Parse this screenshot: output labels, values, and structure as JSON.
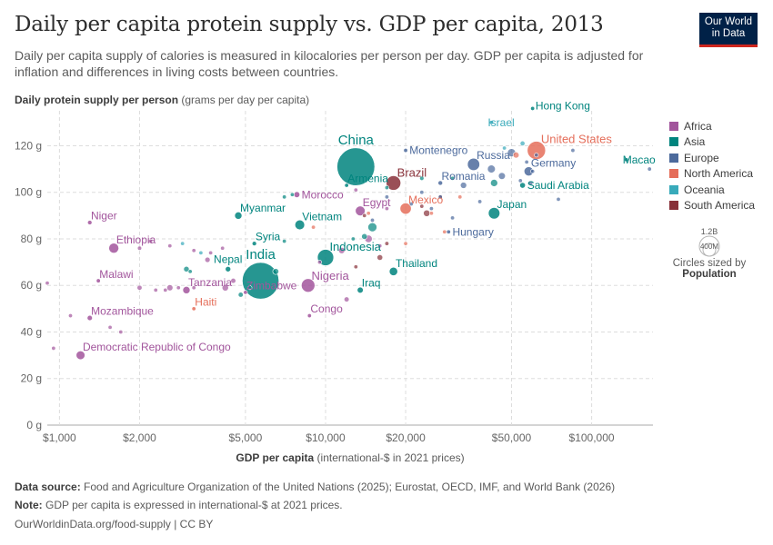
{
  "header": {
    "title": "Daily per capita protein supply vs. GDP per capita, 2013",
    "subtitle": "Daily per capita supply of calories is measured in kilocalories per person per day. GDP per capita is adjusted for inflation and differences in living costs between countries.",
    "logo_line1": "Our World",
    "logo_line2": "in Data"
  },
  "axes": {
    "y_label_bold": "Daily protein supply per person",
    "y_label_rest": "(grams per day per capita)",
    "x_label_bold": "GDP per capita",
    "x_label_rest": "(international-$ in 2021 prices)"
  },
  "legend": {
    "items": [
      {
        "label": "Africa",
        "color": "#a2559c"
      },
      {
        "label": "Asia",
        "color": "#00847e"
      },
      {
        "label": "Europe",
        "color": "#4c6a9c"
      },
      {
        "label": "North America",
        "color": "#e56e5a"
      },
      {
        "label": "Oceania",
        "color": "#38aaba"
      },
      {
        "label": "South America",
        "color": "#883039"
      }
    ],
    "size_big": "1.2B",
    "size_small": "400M",
    "size_note_1": "Circles sized by",
    "size_note_2": "Population"
  },
  "footer": {
    "source_label": "Data source:",
    "source_text": "Food and Agriculture Organization of the United Nations (2025); Eurostat, OECD, IMF, and World Bank (2026)",
    "note_label": "Note:",
    "note_text": "GDP per capita is expressed in international-$ at 2021 prices.",
    "url": "OurWorldinData.org/food-supply | CC BY"
  },
  "chart_data": {
    "type": "scatter",
    "x_scale": "log",
    "xlim": [
      900,
      170000
    ],
    "ylim": [
      0,
      135
    ],
    "x_ticks": [
      {
        "v": 1000,
        "label": "$1,000"
      },
      {
        "v": 2000,
        "label": "$2,000"
      },
      {
        "v": 5000,
        "label": "$5,000"
      },
      {
        "v": 10000,
        "label": "$10,000"
      },
      {
        "v": 20000,
        "label": "$20,000"
      },
      {
        "v": 50000,
        "label": "$50,000"
      },
      {
        "v": 100000,
        "label": "$100,000"
      }
    ],
    "y_ticks": [
      {
        "v": 0,
        "label": "0 g"
      },
      {
        "v": 20,
        "label": "20 g"
      },
      {
        "v": 40,
        "label": "40 g"
      },
      {
        "v": 60,
        "label": "60 g"
      },
      {
        "v": 80,
        "label": "80 g"
      },
      {
        "v": 100,
        "label": "100 g"
      },
      {
        "v": 120,
        "label": "120 g"
      }
    ],
    "grid": true,
    "labeled_points": [
      {
        "name": "Israel",
        "region": "Oceania",
        "x": 42000,
        "y": 130,
        "pop": 8,
        "lx": 0,
        "ly": 1
      },
      {
        "name": "Hong Kong",
        "region": "Asia",
        "x": 60000,
        "y": 136,
        "pop": 7,
        "lx": 1,
        "ly": 1
      },
      {
        "name": "United States",
        "region": "North America",
        "x": 62000,
        "y": 118,
        "pop": 320,
        "lx": 1,
        "ly": -1
      },
      {
        "name": "China",
        "region": "Asia",
        "x": 13000,
        "y": 111,
        "pop": 1370,
        "lx": 0,
        "ly": -1
      },
      {
        "name": "Montenegro",
        "region": "Europe",
        "x": 20000,
        "y": 118,
        "pop": 1,
        "lx": 1,
        "ly": 0
      },
      {
        "name": "Russia",
        "region": "Europe",
        "x": 36000,
        "y": 112,
        "pop": 144,
        "lx": 1,
        "ly": -1
      },
      {
        "name": "Macao",
        "region": "Asia",
        "x": 135000,
        "y": 114,
        "pop": 1,
        "lx": 0,
        "ly": 1
      },
      {
        "name": "Germany",
        "region": "Europe",
        "x": 58000,
        "y": 109,
        "pop": 81,
        "lx": 1,
        "ly": -1
      },
      {
        "name": "Romania",
        "region": "Europe",
        "x": 27000,
        "y": 104,
        "pop": 20,
        "lx": 1,
        "ly": -1
      },
      {
        "name": "Armenia",
        "region": "Asia",
        "x": 12000,
        "y": 103,
        "pop": 3,
        "lx": 1,
        "ly": -1
      },
      {
        "name": "Brazil",
        "region": "South America",
        "x": 18000,
        "y": 104,
        "pop": 204,
        "lx": 1,
        "ly": -1
      },
      {
        "name": "Saudi Arabia",
        "region": "Asia",
        "x": 55000,
        "y": 103,
        "pop": 31,
        "lx": 1,
        "ly": 0
      },
      {
        "name": "Morocco",
        "region": "Africa",
        "x": 7800,
        "y": 99,
        "pop": 34,
        "lx": 1,
        "ly": 0
      },
      {
        "name": "Egypt",
        "region": "Africa",
        "x": 13500,
        "y": 92,
        "pop": 91,
        "lx": 1,
        "ly": -1
      },
      {
        "name": "Mexico",
        "region": "North America",
        "x": 20000,
        "y": 93,
        "pop": 121,
        "lx": 1,
        "ly": -1
      },
      {
        "name": "Japan",
        "region": "Asia",
        "x": 43000,
        "y": 91,
        "pop": 127,
        "lx": 1,
        "ly": -1
      },
      {
        "name": "Myanmar",
        "region": "Asia",
        "x": 4700,
        "y": 90,
        "pop": 51,
        "lx": 1,
        "ly": -1
      },
      {
        "name": "Vietnam",
        "region": "Asia",
        "x": 8000,
        "y": 86,
        "pop": 91,
        "lx": 1,
        "ly": -1
      },
      {
        "name": "Niger",
        "region": "Africa",
        "x": 1300,
        "y": 87,
        "pop": 19,
        "lx": 1,
        "ly": -1
      },
      {
        "name": "Hungary",
        "region": "Europe",
        "x": 29000,
        "y": 83,
        "pop": 10,
        "lx": 1,
        "ly": 0
      },
      {
        "name": "Syria",
        "region": "Asia",
        "x": 5400,
        "y": 78,
        "pop": 19,
        "lx": 1,
        "ly": -1
      },
      {
        "name": "Ethiopia",
        "region": "Africa",
        "x": 1600,
        "y": 76,
        "pop": 96,
        "lx": 1,
        "ly": -1
      },
      {
        "name": "Indonesia",
        "region": "Asia",
        "x": 10000,
        "y": 72,
        "pop": 254,
        "lx": 1,
        "ly": -1
      },
      {
        "name": "Nepal",
        "region": "Asia",
        "x": 4300,
        "y": 67,
        "pop": 28,
        "lx": 0,
        "ly": -1
      },
      {
        "name": "India",
        "region": "Asia",
        "x": 5700,
        "y": 62,
        "pop": 1290,
        "lx": 0,
        "ly": -1
      },
      {
        "name": "Thailand",
        "region": "Asia",
        "x": 18000,
        "y": 66,
        "pop": 68,
        "lx": 1,
        "ly": -1
      },
      {
        "name": "Malawi",
        "region": "Africa",
        "x": 1400,
        "y": 62,
        "pop": 16,
        "lx": 1,
        "ly": -1
      },
      {
        "name": "Nigeria",
        "region": "Africa",
        "x": 8600,
        "y": 60,
        "pop": 176,
        "lx": 1,
        "ly": -1
      },
      {
        "name": "Tanzania",
        "region": "Africa",
        "x": 3000,
        "y": 58,
        "pop": 51,
        "lx": 1,
        "ly": -1
      },
      {
        "name": "Zimbabwe",
        "region": "Africa",
        "x": 5000,
        "y": 57,
        "pop": 14,
        "lx": 1,
        "ly": -1
      },
      {
        "name": "Iraq",
        "region": "Asia",
        "x": 13500,
        "y": 58,
        "pop": 35,
        "lx": 1,
        "ly": -1
      },
      {
        "name": "Haiti",
        "region": "North America",
        "x": 3200,
        "y": 50,
        "pop": 10,
        "lx": 1,
        "ly": -1
      },
      {
        "name": "Congo",
        "region": "Africa",
        "x": 8700,
        "y": 47,
        "pop": 5,
        "lx": 1,
        "ly": -1
      },
      {
        "name": "Mozambique",
        "region": "Africa",
        "x": 1300,
        "y": 46,
        "pop": 26,
        "lx": 1,
        "ly": -1
      },
      {
        "name": "Democratic Republic of Congo",
        "region": "Africa",
        "x": 1200,
        "y": 30,
        "pop": 74,
        "lx": 1,
        "ly": -1
      }
    ],
    "other_points": [
      {
        "region": "Africa",
        "x": 900,
        "y": 61,
        "pop": 11
      },
      {
        "region": "Africa",
        "x": 950,
        "y": 33,
        "pop": 10
      },
      {
        "region": "Africa",
        "x": 1100,
        "y": 47,
        "pop": 12
      },
      {
        "region": "Africa",
        "x": 1550,
        "y": 42,
        "pop": 5
      },
      {
        "region": "Africa",
        "x": 1700,
        "y": 40,
        "pop": 5
      },
      {
        "region": "Africa",
        "x": 2000,
        "y": 59,
        "pop": 24
      },
      {
        "region": "Africa",
        "x": 2300,
        "y": 58,
        "pop": 6
      },
      {
        "region": "Africa",
        "x": 2500,
        "y": 58,
        "pop": 15
      },
      {
        "region": "Africa",
        "x": 2600,
        "y": 59,
        "pop": 36
      },
      {
        "region": "Africa",
        "x": 2800,
        "y": 59,
        "pop": 8
      },
      {
        "region": "Africa",
        "x": 3200,
        "y": 59,
        "pop": 5
      },
      {
        "region": "Africa",
        "x": 2000,
        "y": 76,
        "pop": 17
      },
      {
        "region": "Africa",
        "x": 2200,
        "y": 79,
        "pop": 13
      },
      {
        "region": "Africa",
        "x": 2600,
        "y": 77,
        "pop": 8
      },
      {
        "region": "Africa",
        "x": 3200,
        "y": 75,
        "pop": 11
      },
      {
        "region": "Africa",
        "x": 3600,
        "y": 71,
        "pop": 27
      },
      {
        "region": "Africa",
        "x": 4100,
        "y": 76,
        "pop": 14
      },
      {
        "region": "Africa",
        "x": 4500,
        "y": 62,
        "pop": 25
      },
      {
        "region": "Africa",
        "x": 4200,
        "y": 59,
        "pop": 40
      },
      {
        "region": "Africa",
        "x": 3700,
        "y": 74,
        "pop": 6
      },
      {
        "region": "Africa",
        "x": 9500,
        "y": 70,
        "pop": 2
      },
      {
        "region": "Africa",
        "x": 12000,
        "y": 54,
        "pop": 25
      },
      {
        "region": "Africa",
        "x": 11500,
        "y": 75,
        "pop": 38
      },
      {
        "region": "Africa",
        "x": 13000,
        "y": 101,
        "pop": 11
      },
      {
        "region": "Africa",
        "x": 14500,
        "y": 80,
        "pop": 54
      },
      {
        "region": "Africa",
        "x": 16000,
        "y": 77,
        "pop": 6
      },
      {
        "region": "Africa",
        "x": 17000,
        "y": 93,
        "pop": 2
      },
      {
        "region": "Asia",
        "x": 3000,
        "y": 67,
        "pop": 30
      },
      {
        "region": "Asia",
        "x": 3100,
        "y": 66,
        "pop": 8
      },
      {
        "region": "Asia",
        "x": 4800,
        "y": 56,
        "pop": 24
      },
      {
        "region": "Asia",
        "x": 5200,
        "y": 59,
        "pop": 8
      },
      {
        "region": "Asia",
        "x": 6500,
        "y": 66,
        "pop": 35
      },
      {
        "region": "Asia",
        "x": 7000,
        "y": 79,
        "pop": 15
      },
      {
        "region": "Asia",
        "x": 7500,
        "y": 99,
        "pop": 3
      },
      {
        "region": "Asia",
        "x": 7000,
        "y": 98,
        "pop": 3
      },
      {
        "region": "Asia",
        "x": 12700,
        "y": 80,
        "pop": 6
      },
      {
        "region": "Asia",
        "x": 14000,
        "y": 81,
        "pop": 32
      },
      {
        "region": "Asia",
        "x": 15000,
        "y": 85,
        "pop": 78
      },
      {
        "region": "Asia",
        "x": 17000,
        "y": 102,
        "pop": 2
      },
      {
        "region": "Asia",
        "x": 23000,
        "y": 106,
        "pop": 18
      },
      {
        "region": "Asia",
        "x": 30000,
        "y": 106,
        "pop": 4
      },
      {
        "region": "Asia",
        "x": 43000,
        "y": 104,
        "pop": 50
      },
      {
        "region": "Europe",
        "x": 15000,
        "y": 88,
        "pop": 3
      },
      {
        "region": "Europe",
        "x": 17000,
        "y": 98,
        "pop": 7
      },
      {
        "region": "Europe",
        "x": 21000,
        "y": 95,
        "pop": 4
      },
      {
        "region": "Europe",
        "x": 23000,
        "y": 100,
        "pop": 2
      },
      {
        "region": "Europe",
        "x": 25000,
        "y": 93,
        "pop": 7
      },
      {
        "region": "Europe",
        "x": 27000,
        "y": 98,
        "pop": 4
      },
      {
        "region": "Europe",
        "x": 30000,
        "y": 89,
        "pop": 4
      },
      {
        "region": "Europe",
        "x": 33000,
        "y": 103,
        "pop": 38
      },
      {
        "region": "Europe",
        "x": 38000,
        "y": 96,
        "pop": 11
      },
      {
        "region": "Europe",
        "x": 42000,
        "y": 110,
        "pop": 60
      },
      {
        "region": "Europe",
        "x": 46000,
        "y": 107,
        "pop": 46
      },
      {
        "region": "Europe",
        "x": 50000,
        "y": 117,
        "pop": 64
      },
      {
        "region": "Europe",
        "x": 54000,
        "y": 105,
        "pop": 8
      },
      {
        "region": "Europe",
        "x": 57000,
        "y": 113,
        "pop": 10
      },
      {
        "region": "Europe",
        "x": 59000,
        "y": 104,
        "pop": 17
      },
      {
        "region": "Europe",
        "x": 60000,
        "y": 109,
        "pop": 5
      },
      {
        "region": "Europe",
        "x": 62000,
        "y": 116,
        "pop": 6
      },
      {
        "region": "Europe",
        "x": 75000,
        "y": 97,
        "pop": 8
      },
      {
        "region": "Europe",
        "x": 85000,
        "y": 118,
        "pop": 5
      },
      {
        "region": "Europe",
        "x": 165000,
        "y": 110,
        "pop": 1
      },
      {
        "region": "North America",
        "x": 9000,
        "y": 85,
        "pop": 5
      },
      {
        "region": "North America",
        "x": 14500,
        "y": 91,
        "pop": 3
      },
      {
        "region": "North America",
        "x": 20000,
        "y": 78,
        "pop": 6
      },
      {
        "region": "North America",
        "x": 25000,
        "y": 91,
        "pop": 3
      },
      {
        "region": "North America",
        "x": 28000,
        "y": 83,
        "pop": 4
      },
      {
        "region": "North America",
        "x": 32000,
        "y": 98,
        "pop": 1
      },
      {
        "region": "North America",
        "x": 52000,
        "y": 116,
        "pop": 35
      },
      {
        "region": "Oceania",
        "x": 2900,
        "y": 78,
        "pop": 8
      },
      {
        "region": "Oceania",
        "x": 3400,
        "y": 74,
        "pop": 1
      },
      {
        "region": "Oceania",
        "x": 47000,
        "y": 119,
        "pop": 5
      },
      {
        "region": "Oceania",
        "x": 55000,
        "y": 121,
        "pop": 23
      },
      {
        "region": "South America",
        "x": 13000,
        "y": 68,
        "pop": 10
      },
      {
        "region": "South America",
        "x": 14000,
        "y": 90,
        "pop": 7
      },
      {
        "region": "South America",
        "x": 16000,
        "y": 72,
        "pop": 31
      },
      {
        "region": "South America",
        "x": 17000,
        "y": 78,
        "pop": 16
      },
      {
        "region": "South America",
        "x": 23000,
        "y": 94,
        "pop": 3
      },
      {
        "region": "South America",
        "x": 24000,
        "y": 91,
        "pop": 42
      },
      {
        "region": "South America",
        "x": 27000,
        "y": 98,
        "pop": 17
      }
    ]
  }
}
